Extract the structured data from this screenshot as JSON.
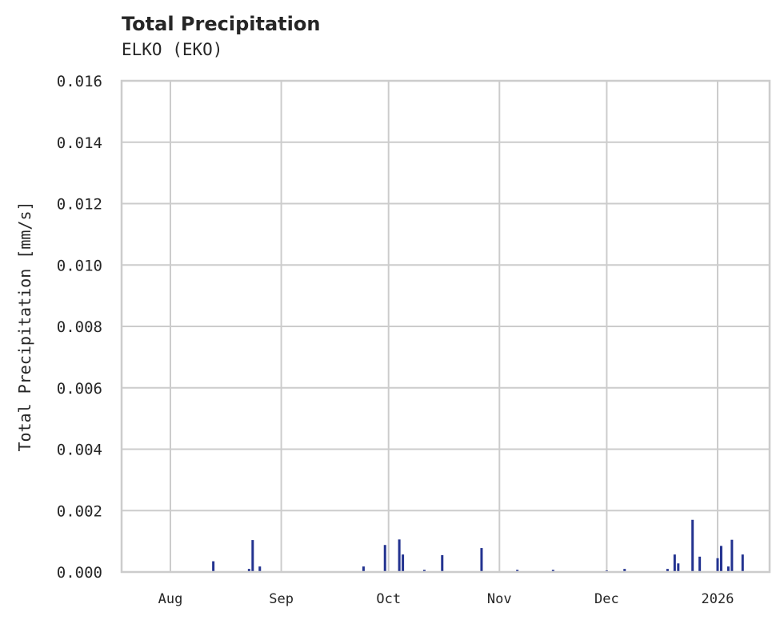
{
  "header": {
    "title": "Total Precipitation",
    "subtitle": "ELKO (EKO)"
  },
  "colors": {
    "bar": "#233390",
    "grid": "#cccccc",
    "axis": "#cccccc",
    "text": "#262626"
  },
  "chart_data": {
    "type": "bar",
    "title": "Total Precipitation",
    "subtitle": "ELKO (EKO)",
    "xlabel": "",
    "ylabel": "Total Precipitation [mm/s]",
    "ylim": [
      0,
      0.016
    ],
    "yticks": [
      "0.000",
      "0.002",
      "0.004",
      "0.006",
      "0.008",
      "0.010",
      "0.012",
      "0.014",
      "0.016"
    ],
    "xticks": [
      "Aug",
      "Sep",
      "Oct",
      "Nov",
      "Dec",
      "2026"
    ],
    "xrange": [
      "2025-07-18",
      "2026-01-15"
    ],
    "grid": true,
    "legend": null,
    "series": [
      {
        "name": "Total Precipitation",
        "points": [
          {
            "date": "2025-08-13",
            "value": 0.00035
          },
          {
            "date": "2025-08-23",
            "value": 0.0001
          },
          {
            "date": "2025-08-24",
            "value": 0.00104
          },
          {
            "date": "2025-08-26",
            "value": 0.00018
          },
          {
            "date": "2025-09-24",
            "value": 0.00018
          },
          {
            "date": "2025-09-30",
            "value": 0.00088
          },
          {
            "date": "2025-10-04",
            "value": 0.00106
          },
          {
            "date": "2025-10-05",
            "value": 0.00057
          },
          {
            "date": "2025-10-11",
            "value": 7e-05
          },
          {
            "date": "2025-10-16",
            "value": 0.00055
          },
          {
            "date": "2025-10-27",
            "value": 0.00078
          },
          {
            "date": "2025-11-06",
            "value": 7e-05
          },
          {
            "date": "2025-11-16",
            "value": 7e-05
          },
          {
            "date": "2025-12-01",
            "value": 5e-05
          },
          {
            "date": "2025-12-06",
            "value": 0.0001
          },
          {
            "date": "2025-12-18",
            "value": 0.0001
          },
          {
            "date": "2025-12-20",
            "value": 0.00057
          },
          {
            "date": "2025-12-21",
            "value": 0.00028
          },
          {
            "date": "2025-12-25",
            "value": 0.0017
          },
          {
            "date": "2025-12-27",
            "value": 0.0005
          },
          {
            "date": "2026-01-01",
            "value": 0.00045
          },
          {
            "date": "2026-01-02",
            "value": 0.00085
          },
          {
            "date": "2026-01-04",
            "value": 0.00018
          },
          {
            "date": "2026-01-05",
            "value": 0.00105
          },
          {
            "date": "2026-01-08",
            "value": 0.00057
          }
        ]
      }
    ]
  }
}
